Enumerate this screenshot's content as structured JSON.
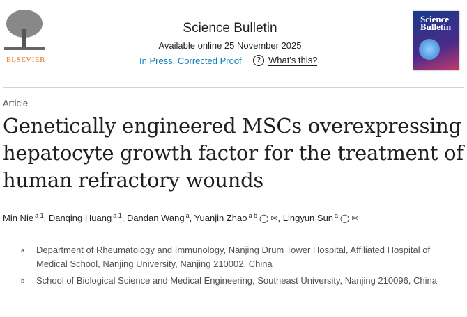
{
  "publisher": {
    "name": "ELSEVIER"
  },
  "journal": {
    "title": "Science Bulletin",
    "available": "Available online 25 November 2025",
    "status": "In Press, Corrected Proof",
    "help": "What's this?",
    "cover_text": "Science Bulletin"
  },
  "article": {
    "type": "Article",
    "title": "Genetically engineered MSCs overexpressing hepatocyte growth factor for the treatment of human refractory wounds"
  },
  "authors": [
    {
      "name": "Min Nie",
      "sup": "a 1"
    },
    {
      "name": "Danqing Huang",
      "sup": "a 1"
    },
    {
      "name": "Dandan Wang",
      "sup": "a"
    },
    {
      "name": "Yuanjin Zhao",
      "sup": "a b",
      "icons": [
        "person-icon",
        "mail-icon"
      ]
    },
    {
      "name": "Lingyun Sun",
      "sup": "a",
      "icons": [
        "person-icon",
        "mail-icon"
      ]
    }
  ],
  "affiliations": [
    {
      "label": "a",
      "text": "Department of Rheumatology and Immunology, Nanjing Drum Tower Hospital, Affiliated Hospital of Medical School, Nanjing University, Nanjing 210002, China"
    },
    {
      "label": "b",
      "text": "School of Biological Science and Medical Engineering, Southeast University, Nanjing 210096, China"
    }
  ]
}
